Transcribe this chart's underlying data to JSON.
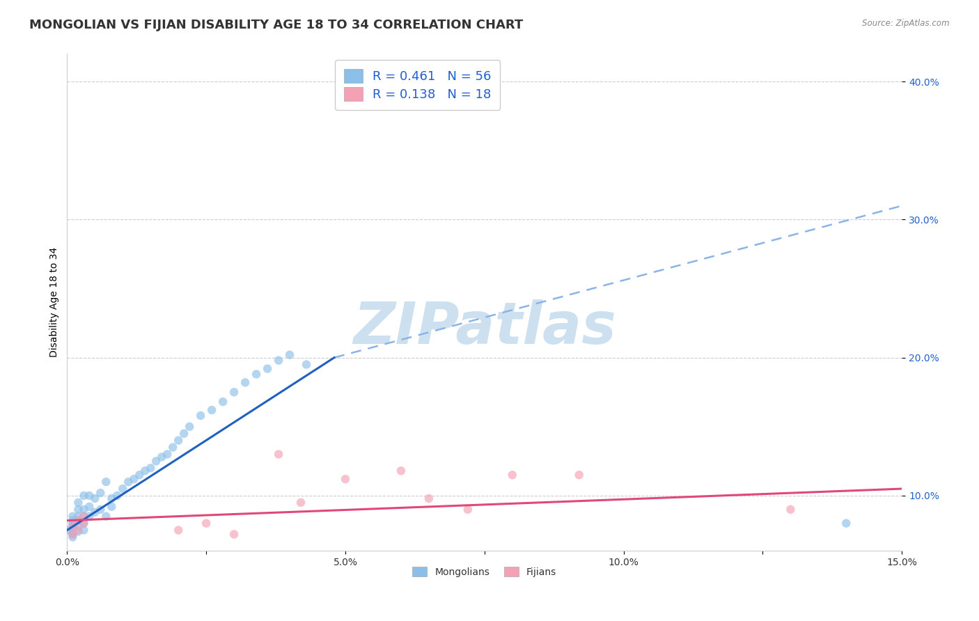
{
  "title": "MONGOLIAN VS FIJIAN DISABILITY AGE 18 TO 34 CORRELATION CHART",
  "source": "Source: ZipAtlas.com",
  "ylabel": "Disability Age 18 to 34",
  "xlim": [
    0.0,
    0.15
  ],
  "ylim": [
    0.06,
    0.42
  ],
  "xticks": [
    0.0,
    0.025,
    0.05,
    0.075,
    0.1,
    0.125,
    0.15
  ],
  "xticklabels": [
    "0.0%",
    "",
    "5.0%",
    "",
    "10.0%",
    "",
    "15.0%"
  ],
  "yticks": [
    0.1,
    0.2,
    0.3,
    0.4
  ],
  "yticklabels": [
    "10.0%",
    "20.0%",
    "30.0%",
    "40.0%"
  ],
  "mongolian_color": "#8bbfe8",
  "fijian_color": "#f4a0b5",
  "trend_mongolian_color": "#2060c0",
  "trend_fijian_color": "#e04878",
  "dashed_line_color": "#8ab4e8",
  "watermark_text": "ZIPatlas",
  "watermark_color": "#cde0f0",
  "legend_R_mongolian": "0.461",
  "legend_N_mongolian": "56",
  "legend_R_fijian": "0.138",
  "legend_N_fijian": "18",
  "legend_text_color": "#2060d0",
  "tick_label_color": "#2060d0",
  "legend_label_mongolian": "Mongolians",
  "legend_label_fijian": "Fijians",
  "mongolian_x": [
    0.0,
    0.001,
    0.001,
    0.001,
    0.001,
    0.001,
    0.001,
    0.001,
    0.001,
    0.002,
    0.002,
    0.002,
    0.002,
    0.002,
    0.002,
    0.003,
    0.003,
    0.003,
    0.003,
    0.003,
    0.004,
    0.004,
    0.004,
    0.005,
    0.005,
    0.006,
    0.006,
    0.007,
    0.007,
    0.008,
    0.008,
    0.009,
    0.01,
    0.011,
    0.012,
    0.013,
    0.014,
    0.015,
    0.016,
    0.017,
    0.018,
    0.019,
    0.02,
    0.021,
    0.022,
    0.024,
    0.026,
    0.028,
    0.03,
    0.032,
    0.034,
    0.036,
    0.038,
    0.04,
    0.043,
    0.14
  ],
  "mongolian_y": [
    0.075,
    0.073,
    0.076,
    0.078,
    0.08,
    0.082,
    0.085,
    0.072,
    0.07,
    0.074,
    0.078,
    0.082,
    0.085,
    0.09,
    0.095,
    0.075,
    0.08,
    0.085,
    0.09,
    0.1,
    0.085,
    0.092,
    0.1,
    0.088,
    0.098,
    0.09,
    0.102,
    0.085,
    0.11,
    0.092,
    0.098,
    0.1,
    0.105,
    0.11,
    0.112,
    0.115,
    0.118,
    0.12,
    0.125,
    0.128,
    0.13,
    0.135,
    0.14,
    0.145,
    0.15,
    0.158,
    0.162,
    0.168,
    0.175,
    0.182,
    0.188,
    0.192,
    0.198,
    0.202,
    0.195,
    0.08
  ],
  "fijian_x": [
    0.001,
    0.001,
    0.002,
    0.002,
    0.003,
    0.003,
    0.02,
    0.025,
    0.03,
    0.038,
    0.042,
    0.05,
    0.06,
    0.065,
    0.072,
    0.08,
    0.092,
    0.13
  ],
  "fijian_y": [
    0.072,
    0.078,
    0.075,
    0.082,
    0.08,
    0.085,
    0.075,
    0.08,
    0.072,
    0.13,
    0.095,
    0.112,
    0.118,
    0.098,
    0.09,
    0.115,
    0.115,
    0.09
  ],
  "mongolian_trend_x0": 0.0,
  "mongolian_trend_y0": 0.075,
  "mongolian_trend_x1": 0.048,
  "mongolian_trend_y1": 0.2,
  "dashed_trend_x0": 0.048,
  "dashed_trend_y0": 0.2,
  "dashed_trend_x1": 0.15,
  "dashed_trend_y1": 0.31,
  "fijian_trend_x0": 0.0,
  "fijian_trend_y0": 0.082,
  "fijian_trend_x1": 0.15,
  "fijian_trend_y1": 0.105,
  "background_color": "#ffffff",
  "grid_color": "#cccccc",
  "title_fontsize": 13,
  "axis_label_fontsize": 10,
  "tick_fontsize": 10,
  "scatter_size": 80,
  "scatter_alpha": 0.65
}
